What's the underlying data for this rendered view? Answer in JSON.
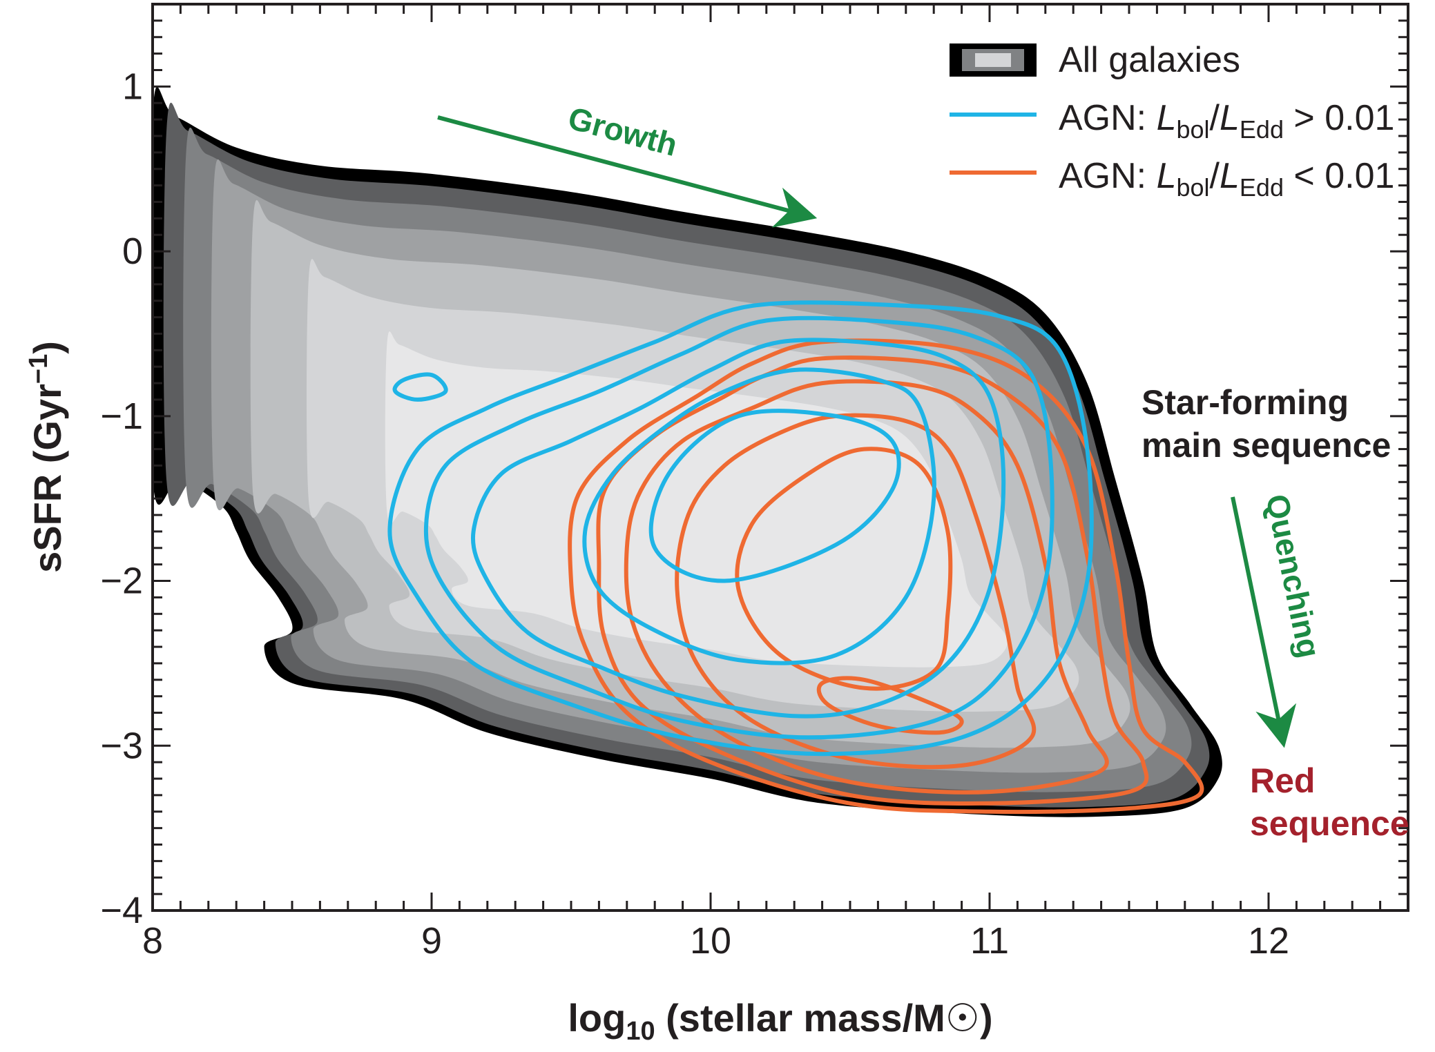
{
  "chart_data": {
    "type": "contour",
    "xlabel": {
      "base": "log",
      "sub": "10",
      "rest": " (stellar mass/M",
      "symbol": "☉",
      "close": ")"
    },
    "ylabel": {
      "main": "sSFR (Gyr",
      "sup": "−1",
      "close": ")"
    },
    "xlim": [
      8,
      12.5
    ],
    "ylim": [
      -4,
      1.5
    ],
    "xticks": [
      {
        "v": 8,
        "label": "8"
      },
      {
        "v": 9,
        "label": "9"
      },
      {
        "v": 10,
        "label": "10"
      },
      {
        "v": 11,
        "label": "11"
      },
      {
        "v": 12,
        "label": "12"
      }
    ],
    "yticks": [
      {
        "v": 1,
        "label": "1"
      },
      {
        "v": 0,
        "label": "0"
      },
      {
        "v": -1,
        "label": "−1"
      },
      {
        "v": -2,
        "label": "−2"
      },
      {
        "v": -3,
        "label": "−3"
      },
      {
        "v": -4,
        "label": "−4"
      }
    ],
    "legend": {
      "placement": "top-right",
      "all": {
        "label": "All galaxies"
      },
      "high": {
        "prefix": "AGN: ",
        "L1": "L",
        "s1": "bol",
        "slash": "/",
        "L2": "L",
        "s2": "Edd",
        "cmp": " > 0.01",
        "color": "#1fb4e6"
      },
      "low": {
        "prefix": "AGN: ",
        "L1": "L",
        "s1": "bol",
        "slash": "/",
        "L2": "L",
        "s2": "Edd",
        "cmp": " < 0.01",
        "color": "#ef6a32"
      }
    },
    "annotations": {
      "growth": "Growth",
      "quenching": "Quenching",
      "ms_line1": "Star-forming",
      "ms_line2": "main sequence",
      "rs_line1": "Red",
      "rs_line2": "sequence"
    },
    "colors": {
      "green": "#1c8a43",
      "red": "#a4212c",
      "gray_levels": [
        "#000000",
        "#5d5e60",
        "#808284",
        "#9fa1a3",
        "#bdbfc1",
        "#d4d5d7",
        "#e7e7e8"
      ]
    },
    "all_galaxies_outer": [
      [
        8.0,
        0.83
      ],
      [
        8.08,
        0.82
      ],
      [
        8.3,
        0.63
      ],
      [
        8.6,
        0.52
      ],
      [
        9.0,
        0.47
      ],
      [
        9.5,
        0.36
      ],
      [
        9.9,
        0.24
      ],
      [
        10.3,
        0.13
      ],
      [
        10.7,
        0.0
      ],
      [
        11.0,
        -0.16
      ],
      [
        11.2,
        -0.38
      ],
      [
        11.35,
        -0.8
      ],
      [
        11.45,
        -1.38
      ],
      [
        11.55,
        -2.0
      ],
      [
        11.6,
        -2.45
      ],
      [
        11.72,
        -2.75
      ],
      [
        11.82,
        -3.0
      ],
      [
        11.82,
        -3.2
      ],
      [
        11.7,
        -3.38
      ],
      [
        11.4,
        -3.43
      ],
      [
        11.0,
        -3.42
      ],
      [
        10.4,
        -3.35
      ],
      [
        10.0,
        -3.2
      ],
      [
        9.6,
        -3.08
      ],
      [
        9.2,
        -2.92
      ],
      [
        8.9,
        -2.72
      ],
      [
        8.5,
        -2.62
      ],
      [
        8.4,
        -2.4
      ],
      [
        8.5,
        -2.3
      ],
      [
        8.45,
        -2.1
      ],
      [
        8.35,
        -1.88
      ],
      [
        8.3,
        -1.7
      ],
      [
        8.25,
        -1.55
      ],
      [
        8.1,
        -1.38
      ],
      [
        8.0,
        -1.38
      ]
    ],
    "agn_high_contours": [
      [
        [
          10.15,
          -0.33
        ],
        [
          10.7,
          -0.33
        ],
        [
          11.05,
          -0.4
        ],
        [
          11.25,
          -0.6
        ],
        [
          11.35,
          -1.2
        ],
        [
          11.35,
          -2.0
        ],
        [
          11.2,
          -2.6
        ],
        [
          10.9,
          -2.95
        ],
        [
          10.4,
          -3.05
        ],
        [
          9.9,
          -2.95
        ],
        [
          9.5,
          -2.75
        ],
        [
          9.15,
          -2.5
        ],
        [
          8.95,
          -2.1
        ],
        [
          8.85,
          -1.7
        ],
        [
          8.95,
          -1.2
        ],
        [
          9.2,
          -0.95
        ],
        [
          9.5,
          -0.75
        ],
        [
          9.8,
          -0.55
        ]
      ],
      [
        [
          10.2,
          -0.42
        ],
        [
          10.65,
          -0.43
        ],
        [
          10.95,
          -0.52
        ],
        [
          11.15,
          -0.75
        ],
        [
          11.22,
          -1.3
        ],
        [
          11.2,
          -2.0
        ],
        [
          11.05,
          -2.55
        ],
        [
          10.8,
          -2.85
        ],
        [
          10.35,
          -2.95
        ],
        [
          9.9,
          -2.85
        ],
        [
          9.55,
          -2.65
        ],
        [
          9.25,
          -2.42
        ],
        [
          9.05,
          -2.05
        ],
        [
          8.98,
          -1.7
        ],
        [
          9.05,
          -1.3
        ],
        [
          9.3,
          -1.05
        ],
        [
          9.6,
          -0.85
        ],
        [
          9.9,
          -0.62
        ]
      ],
      [
        [
          10.25,
          -0.55
        ],
        [
          10.6,
          -0.56
        ],
        [
          10.85,
          -0.65
        ],
        [
          11.0,
          -0.88
        ],
        [
          11.05,
          -1.4
        ],
        [
          11.0,
          -2.05
        ],
        [
          10.85,
          -2.5
        ],
        [
          10.6,
          -2.75
        ],
        [
          10.3,
          -2.82
        ],
        [
          9.9,
          -2.7
        ],
        [
          9.6,
          -2.52
        ],
        [
          9.35,
          -2.32
        ],
        [
          9.2,
          -2.0
        ],
        [
          9.15,
          -1.7
        ],
        [
          9.25,
          -1.35
        ],
        [
          9.5,
          -1.15
        ],
        [
          9.75,
          -0.95
        ],
        [
          10.0,
          -0.72
        ]
      ],
      [
        [
          10.3,
          -0.72
        ],
        [
          10.6,
          -0.78
        ],
        [
          10.75,
          -0.95
        ],
        [
          10.8,
          -1.5
        ],
        [
          10.7,
          -2.1
        ],
        [
          10.45,
          -2.45
        ],
        [
          10.1,
          -2.48
        ],
        [
          9.8,
          -2.3
        ],
        [
          9.6,
          -2.05
        ],
        [
          9.55,
          -1.7
        ],
        [
          9.65,
          -1.35
        ],
        [
          9.85,
          -1.05
        ],
        [
          10.05,
          -0.85
        ]
      ],
      [
        [
          10.1,
          -1.0
        ],
        [
          10.45,
          -1.0
        ],
        [
          10.65,
          -1.15
        ],
        [
          10.65,
          -1.45
        ],
        [
          10.45,
          -1.78
        ],
        [
          10.05,
          -2.0
        ],
        [
          9.8,
          -1.8
        ],
        [
          9.85,
          -1.35
        ]
      ],
      [
        [
          8.9,
          -0.78
        ],
        [
          9.0,
          -0.75
        ],
        [
          9.05,
          -0.85
        ],
        [
          8.95,
          -0.9
        ],
        [
          8.87,
          -0.85
        ]
      ]
    ],
    "agn_low_contours": [
      [
        [
          10.4,
          -0.55
        ],
        [
          10.85,
          -0.58
        ],
        [
          11.15,
          -0.78
        ],
        [
          11.35,
          -1.2
        ],
        [
          11.45,
          -1.9
        ],
        [
          11.5,
          -2.5
        ],
        [
          11.55,
          -2.9
        ],
        [
          11.7,
          -3.1
        ],
        [
          11.75,
          -3.3
        ],
        [
          11.5,
          -3.38
        ],
        [
          11.0,
          -3.4
        ],
        [
          10.5,
          -3.35
        ],
        [
          10.0,
          -3.1
        ],
        [
          9.7,
          -2.8
        ],
        [
          9.55,
          -2.4
        ],
        [
          9.5,
          -2.0
        ],
        [
          9.52,
          -1.5
        ],
        [
          9.7,
          -1.15
        ],
        [
          9.95,
          -0.88
        ],
        [
          10.15,
          -0.68
        ]
      ],
      [
        [
          10.4,
          -0.65
        ],
        [
          10.8,
          -0.68
        ],
        [
          11.05,
          -0.85
        ],
        [
          11.25,
          -1.2
        ],
        [
          11.35,
          -1.85
        ],
        [
          11.4,
          -2.45
        ],
        [
          11.45,
          -2.85
        ],
        [
          11.55,
          -3.1
        ],
        [
          11.5,
          -3.28
        ],
        [
          11.0,
          -3.35
        ],
        [
          10.5,
          -3.3
        ],
        [
          10.05,
          -3.05
        ],
        [
          9.75,
          -2.75
        ],
        [
          9.62,
          -2.35
        ],
        [
          9.6,
          -1.9
        ],
        [
          9.62,
          -1.45
        ],
        [
          9.8,
          -1.12
        ],
        [
          10.05,
          -0.88
        ],
        [
          10.2,
          -0.75
        ]
      ],
      [
        [
          10.4,
          -0.8
        ],
        [
          10.75,
          -0.82
        ],
        [
          10.95,
          -0.98
        ],
        [
          11.1,
          -1.3
        ],
        [
          11.2,
          -1.9
        ],
        [
          11.25,
          -2.5
        ],
        [
          11.35,
          -2.9
        ],
        [
          11.4,
          -3.15
        ],
        [
          11.0,
          -3.28
        ],
        [
          10.5,
          -3.22
        ],
        [
          10.1,
          -2.98
        ],
        [
          9.85,
          -2.65
        ],
        [
          9.72,
          -2.25
        ],
        [
          9.7,
          -1.8
        ],
        [
          9.75,
          -1.45
        ],
        [
          9.9,
          -1.15
        ],
        [
          10.15,
          -0.95
        ]
      ],
      [
        [
          10.45,
          -1.0
        ],
        [
          10.7,
          -1.03
        ],
        [
          10.85,
          -1.2
        ],
        [
          10.95,
          -1.6
        ],
        [
          11.05,
          -2.2
        ],
        [
          11.1,
          -2.65
        ],
        [
          11.15,
          -2.95
        ],
        [
          10.9,
          -3.12
        ],
        [
          10.5,
          -3.08
        ],
        [
          10.15,
          -2.85
        ],
        [
          9.95,
          -2.5
        ],
        [
          9.88,
          -2.05
        ],
        [
          9.92,
          -1.6
        ],
        [
          10.05,
          -1.3
        ],
        [
          10.25,
          -1.1
        ]
      ],
      [
        [
          10.55,
          -1.2
        ],
        [
          10.75,
          -1.3
        ],
        [
          10.85,
          -1.7
        ],
        [
          10.85,
          -2.2
        ],
        [
          10.8,
          -2.55
        ],
        [
          10.55,
          -2.65
        ],
        [
          10.25,
          -2.45
        ],
        [
          10.1,
          -2.05
        ],
        [
          10.15,
          -1.65
        ],
        [
          10.35,
          -1.35
        ]
      ],
      [
        [
          10.4,
          -2.62
        ],
        [
          10.55,
          -2.6
        ],
        [
          10.8,
          -2.75
        ],
        [
          10.9,
          -2.85
        ],
        [
          10.82,
          -2.92
        ],
        [
          10.6,
          -2.88
        ],
        [
          10.42,
          -2.75
        ]
      ]
    ]
  }
}
